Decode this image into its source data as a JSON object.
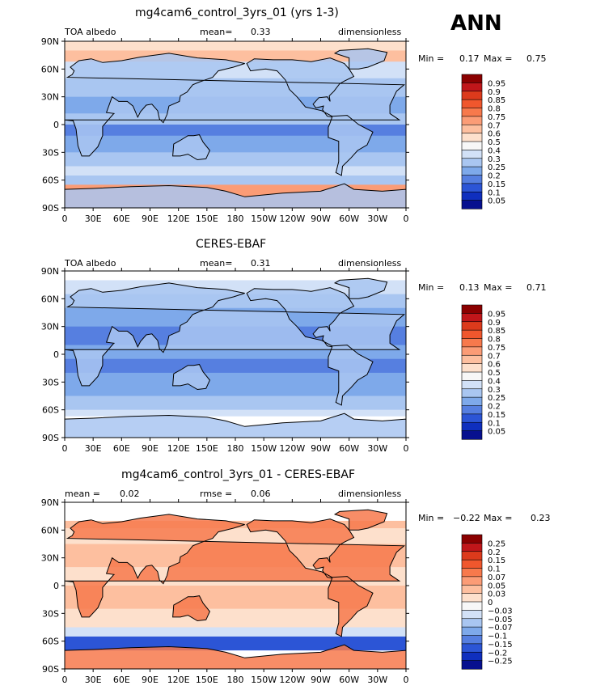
{
  "season": "ANN",
  "panels": [
    {
      "title": "mg4cam6_control_3yrs_01 (yrs 1-3)",
      "left_label": "TOA albedo",
      "center_label": "mean=",
      "center_value": "0.33",
      "right_label": "dimensionless",
      "min_label": "Min =",
      "min_value": "0.17",
      "max_label": "Max =",
      "max_value": "0.75",
      "colorbar_labels": [
        "0.95",
        "0.9",
        "0.85",
        "0.8",
        "0.75",
        "0.7",
        "0.6",
        "0.5",
        "0.4",
        "0.3",
        "0.25",
        "0.2",
        "0.15",
        "0.1",
        "0.05"
      ],
      "colorbar_colors": [
        "#8b0000",
        "#c0161a",
        "#dc3a1c",
        "#f0572d",
        "#f7794c",
        "#fb9c76",
        "#fdbf9f",
        "#fde0cc",
        "#f7f7f7",
        "#d2e1f7",
        "#a9c6f1",
        "#7ea9ea",
        "#567fe0",
        "#2c55d6",
        "#0f2fbe",
        "#07108f"
      ]
    },
    {
      "title": "CERES-EBAF",
      "left_label": "TOA albedo",
      "center_label": "mean=",
      "center_value": "0.31",
      "right_label": "dimensionless",
      "min_label": "Min =",
      "min_value": "0.13",
      "max_label": "Max =",
      "max_value": "0.71",
      "colorbar_labels": [
        "0.95",
        "0.9",
        "0.85",
        "0.8",
        "0.75",
        "0.7",
        "0.6",
        "0.5",
        "0.4",
        "0.3",
        "0.25",
        "0.2",
        "0.15",
        "0.1",
        "0.05"
      ],
      "colorbar_colors": [
        "#8b0000",
        "#c0161a",
        "#dc3a1c",
        "#f0572d",
        "#f7794c",
        "#fb9c76",
        "#fdbf9f",
        "#fde0cc",
        "#f7f7f7",
        "#d2e1f7",
        "#a9c6f1",
        "#7ea9ea",
        "#567fe0",
        "#2c55d6",
        "#0f2fbe",
        "#07108f"
      ]
    },
    {
      "title": "mg4cam6_control_3yrs_01 - CERES-EBAF",
      "left_label": "mean =",
      "left_value": "0.02",
      "center_label": "rmse =",
      "center_value": "0.06",
      "right_label": "dimensionless",
      "min_label": "Min =",
      "min_value": "−0.22",
      "max_label": "Max =",
      "max_value": "0.23",
      "colorbar_labels": [
        "0.25",
        "0.2",
        "0.15",
        "0.1",
        "0.07",
        "0.05",
        "0.03",
        "0",
        "−0.03",
        "−0.05",
        "−0.07",
        "−0.1",
        "−0.15",
        "−0.2",
        "−0.25"
      ],
      "colorbar_colors": [
        "#8b0000",
        "#c0161a",
        "#dc3a1c",
        "#f0572d",
        "#f7794c",
        "#fb9c76",
        "#fdbf9f",
        "#fde0cc",
        "#f7f7f7",
        "#d2e1f7",
        "#a9c6f1",
        "#7ea9ea",
        "#567fe0",
        "#2c55d6",
        "#0f2fbe",
        "#07108f"
      ]
    }
  ],
  "axes": {
    "lat_ticks": [
      "90N",
      "60N",
      "30N",
      "0",
      "30S",
      "60S",
      "90S"
    ],
    "lon_ticks": [
      "0",
      "30E",
      "60E",
      "90E",
      "120E",
      "150E",
      "180",
      "150W",
      "120W",
      "90W",
      "60W",
      "30W",
      "0"
    ]
  }
}
